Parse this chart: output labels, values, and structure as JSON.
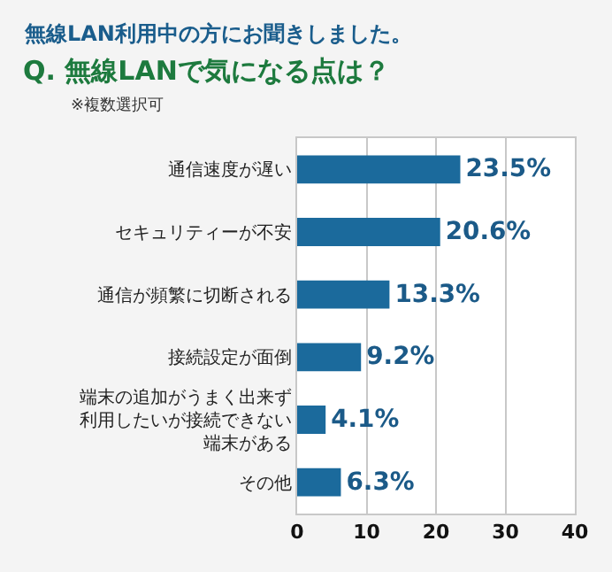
{
  "chart_data": {
    "type": "bar",
    "orientation": "horizontal",
    "title": "無線LAN利用中の方にお聞きしました。",
    "subtitle": "Q. 無線LANで気になる点は？",
    "annotations": [
      "※複数選択可"
    ],
    "categories": [
      "通信速度が遅い",
      "セキュリティーが不安",
      "通信が頻繁に切断される",
      "接続設定が面倒",
      "端末の追加がうまく出来ず利用したいが接続できない端末がある",
      "その他"
    ],
    "values": [
      23.5,
      20.6,
      13.3,
      9.2,
      4.1,
      6.3
    ],
    "value_labels": [
      "23.5%",
      "20.6%",
      "13.3%",
      "9.2%",
      "4.1%",
      "6.3%"
    ],
    "color": "#1b6a9c",
    "xlim": [
      0,
      40
    ],
    "xticks": [
      0,
      10,
      20,
      30,
      40
    ],
    "grid": "x"
  }
}
